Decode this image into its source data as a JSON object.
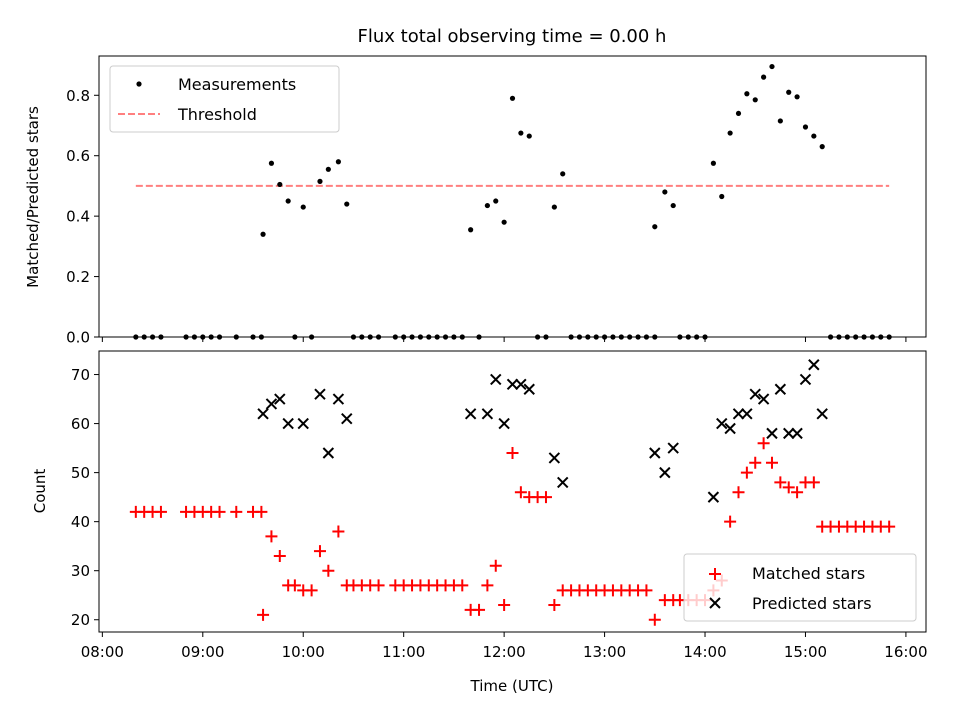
{
  "title": "Flux total observing time = 0.00 h",
  "colors": {
    "measurement": "#000000",
    "threshold": "#ff7f7f",
    "matched": "#ff0000",
    "predicted": "#000000"
  },
  "chart_data": [
    {
      "type": "scatter",
      "title": "Flux total observing time = 0.00 h",
      "xlabel": "",
      "ylabel": "Matched/Predicted stars",
      "xlim": [
        "07:58",
        "16:12"
      ],
      "ylim": [
        0,
        0.93
      ],
      "yticks": [
        0.0,
        0.2,
        0.4,
        0.6,
        0.8
      ],
      "ytick_labels": [
        "0.0",
        "0.2",
        "0.4",
        "0.6",
        "0.8"
      ],
      "legend": {
        "position": "top-left",
        "entries": [
          "Measurements",
          "Threshold"
        ]
      },
      "threshold": {
        "name": "Threshold",
        "y": 0.5,
        "x_range": [
          "08:20",
          "15:50"
        ]
      },
      "series": [
        {
          "name": "Measurements",
          "marker": "dot",
          "points": [
            [
              "08:20",
              0
            ],
            [
              "08:25",
              0
            ],
            [
              "08:30",
              0
            ],
            [
              "08:35",
              0
            ],
            [
              "08:50",
              0
            ],
            [
              "08:55",
              0
            ],
            [
              "09:00",
              0
            ],
            [
              "09:05",
              0
            ],
            [
              "09:10",
              0
            ],
            [
              "09:20",
              0
            ],
            [
              "09:30",
              0
            ],
            [
              "09:35",
              0
            ],
            [
              "09:36",
              0.34
            ],
            [
              "09:41",
              0.575
            ],
            [
              "09:46",
              0.505
            ],
            [
              "09:51",
              0.45
            ],
            [
              "09:55",
              0
            ],
            [
              "10:00",
              0.43
            ],
            [
              "10:05",
              0
            ],
            [
              "10:10",
              0.515
            ],
            [
              "10:15",
              0.555
            ],
            [
              "10:21",
              0.58
            ],
            [
              "10:26",
              0.44
            ],
            [
              "10:30",
              0
            ],
            [
              "10:35",
              0
            ],
            [
              "10:40",
              0
            ],
            [
              "10:45",
              0
            ],
            [
              "10:55",
              0
            ],
            [
              "11:00",
              0
            ],
            [
              "11:05",
              0
            ],
            [
              "11:10",
              0
            ],
            [
              "11:15",
              0
            ],
            [
              "11:20",
              0
            ],
            [
              "11:25",
              0
            ],
            [
              "11:30",
              0
            ],
            [
              "11:35",
              0
            ],
            [
              "11:40",
              0.355
            ],
            [
              "11:45",
              0
            ],
            [
              "11:50",
              0.435
            ],
            [
              "11:55",
              0.45
            ],
            [
              "12:00",
              0.38
            ],
            [
              "12:05",
              0.79
            ],
            [
              "12:10",
              0.675
            ],
            [
              "12:15",
              0.665
            ],
            [
              "12:20",
              0
            ],
            [
              "12:25",
              0
            ],
            [
              "12:30",
              0.43
            ],
            [
              "12:35",
              0.54
            ],
            [
              "12:40",
              0
            ],
            [
              "12:45",
              0
            ],
            [
              "12:50",
              0
            ],
            [
              "12:55",
              0
            ],
            [
              "13:00",
              0
            ],
            [
              "13:05",
              0
            ],
            [
              "13:10",
              0
            ],
            [
              "13:15",
              0
            ],
            [
              "13:20",
              0
            ],
            [
              "13:25",
              0
            ],
            [
              "13:30",
              0
            ],
            [
              "13:30",
              0.365
            ],
            [
              "13:36",
              0.48
            ],
            [
              "13:41",
              0.435
            ],
            [
              "13:45",
              0
            ],
            [
              "13:50",
              0
            ],
            [
              "13:55",
              0
            ],
            [
              "14:00",
              0
            ],
            [
              "14:05",
              0.575
            ],
            [
              "14:10",
              0.465
            ],
            [
              "14:15",
              0.675
            ],
            [
              "14:20",
              0.74
            ],
            [
              "14:25",
              0.805
            ],
            [
              "14:30",
              0.785
            ],
            [
              "14:35",
              0.86
            ],
            [
              "14:40",
              0.895
            ],
            [
              "14:45",
              0.715
            ],
            [
              "14:50",
              0.81
            ],
            [
              "14:55",
              0.795
            ],
            [
              "15:00",
              0.695
            ],
            [
              "15:05",
              0.665
            ],
            [
              "15:10",
              0.63
            ],
            [
              "15:15",
              0
            ],
            [
              "15:20",
              0
            ],
            [
              "15:25",
              0
            ],
            [
              "15:30",
              0
            ],
            [
              "15:35",
              0
            ],
            [
              "15:40",
              0
            ],
            [
              "15:45",
              0
            ],
            [
              "15:50",
              0
            ]
          ]
        }
      ]
    },
    {
      "type": "scatter",
      "title": "",
      "xlabel": "Time (UTC)",
      "ylabel": "Count",
      "xlim": [
        "07:58",
        "16:12"
      ],
      "ylim": [
        17.5,
        74.8
      ],
      "yticks": [
        20,
        30,
        40,
        50,
        60,
        70
      ],
      "ytick_labels": [
        "20",
        "30",
        "40",
        "50",
        "60",
        "70"
      ],
      "xticks": [
        "08:00",
        "09:00",
        "10:00",
        "11:00",
        "12:00",
        "13:00",
        "14:00",
        "15:00",
        "16:00"
      ],
      "xtick_labels": [
        "08:00",
        "09:00",
        "10:00",
        "11:00",
        "12:00",
        "13:00",
        "14:00",
        "15:00",
        "16:00"
      ],
      "legend": {
        "position": "bottom-right",
        "entries": [
          "Matched stars",
          "Predicted stars"
        ]
      },
      "series": [
        {
          "name": "Matched stars",
          "marker": "plus",
          "points": [
            [
              "08:20",
              42
            ],
            [
              "08:25",
              42
            ],
            [
              "08:30",
              42
            ],
            [
              "08:35",
              42
            ],
            [
              "08:50",
              42
            ],
            [
              "08:55",
              42
            ],
            [
              "09:00",
              42
            ],
            [
              "09:05",
              42
            ],
            [
              "09:10",
              42
            ],
            [
              "09:20",
              42
            ],
            [
              "09:30",
              42
            ],
            [
              "09:35",
              42
            ],
            [
              "09:36",
              21
            ],
            [
              "09:41",
              37
            ],
            [
              "09:46",
              33
            ],
            [
              "09:51",
              27
            ],
            [
              "09:55",
              27
            ],
            [
              "10:00",
              26
            ],
            [
              "10:05",
              26
            ],
            [
              "10:10",
              34
            ],
            [
              "10:15",
              30
            ],
            [
              "10:21",
              38
            ],
            [
              "10:26",
              27
            ],
            [
              "10:30",
              27
            ],
            [
              "10:35",
              27
            ],
            [
              "10:40",
              27
            ],
            [
              "10:45",
              27
            ],
            [
              "10:55",
              27
            ],
            [
              "11:00",
              27
            ],
            [
              "11:05",
              27
            ],
            [
              "11:10",
              27
            ],
            [
              "11:15",
              27
            ],
            [
              "11:20",
              27
            ],
            [
              "11:25",
              27
            ],
            [
              "11:30",
              27
            ],
            [
              "11:35",
              27
            ],
            [
              "11:40",
              22
            ],
            [
              "11:45",
              22
            ],
            [
              "11:50",
              27
            ],
            [
              "11:55",
              31
            ],
            [
              "12:00",
              23
            ],
            [
              "12:05",
              54
            ],
            [
              "12:10",
              46
            ],
            [
              "12:15",
              45
            ],
            [
              "12:20",
              45
            ],
            [
              "12:25",
              45
            ],
            [
              "12:30",
              23
            ],
            [
              "12:35",
              26
            ],
            [
              "12:40",
              26
            ],
            [
              "12:45",
              26
            ],
            [
              "12:50",
              26
            ],
            [
              "12:55",
              26
            ],
            [
              "13:00",
              26
            ],
            [
              "13:05",
              26
            ],
            [
              "13:10",
              26
            ],
            [
              "13:15",
              26
            ],
            [
              "13:20",
              26
            ],
            [
              "13:25",
              26
            ],
            [
              "13:30",
              20
            ],
            [
              "13:36",
              24
            ],
            [
              "13:41",
              24
            ],
            [
              "13:45",
              24
            ],
            [
              "13:50",
              24
            ],
            [
              "13:55",
              24
            ],
            [
              "14:00",
              24
            ],
            [
              "14:05",
              26
            ],
            [
              "14:10",
              28
            ],
            [
              "14:15",
              40
            ],
            [
              "14:20",
              46
            ],
            [
              "14:25",
              50
            ],
            [
              "14:30",
              52
            ],
            [
              "14:35",
              56
            ],
            [
              "14:40",
              52
            ],
            [
              "14:45",
              48
            ],
            [
              "14:50",
              47
            ],
            [
              "14:55",
              46
            ],
            [
              "15:00",
              48
            ],
            [
              "15:05",
              48
            ],
            [
              "15:10",
              39
            ],
            [
              "15:15",
              39
            ],
            [
              "15:20",
              39
            ],
            [
              "15:25",
              39
            ],
            [
              "15:30",
              39
            ],
            [
              "15:35",
              39
            ],
            [
              "15:40",
              39
            ],
            [
              "15:45",
              39
            ],
            [
              "15:50",
              39
            ]
          ]
        },
        {
          "name": "Predicted stars",
          "marker": "x",
          "points": [
            [
              "09:36",
              62
            ],
            [
              "09:41",
              64
            ],
            [
              "09:46",
              65
            ],
            [
              "09:51",
              60
            ],
            [
              "10:00",
              60
            ],
            [
              "10:10",
              66
            ],
            [
              "10:15",
              54
            ],
            [
              "10:21",
              65
            ],
            [
              "10:26",
              61
            ],
            [
              "11:40",
              62
            ],
            [
              "11:50",
              62
            ],
            [
              "11:55",
              69
            ],
            [
              "12:00",
              60
            ],
            [
              "12:05",
              68
            ],
            [
              "12:10",
              68
            ],
            [
              "12:15",
              67
            ],
            [
              "12:30",
              53
            ],
            [
              "12:35",
              48
            ],
            [
              "13:30",
              54
            ],
            [
              "13:36",
              50
            ],
            [
              "13:41",
              55
            ],
            [
              "14:05",
              45
            ],
            [
              "14:10",
              60
            ],
            [
              "14:15",
              59
            ],
            [
              "14:20",
              62
            ],
            [
              "14:25",
              62
            ],
            [
              "14:30",
              66
            ],
            [
              "14:35",
              65
            ],
            [
              "14:40",
              58
            ],
            [
              "14:45",
              67
            ],
            [
              "14:50",
              58
            ],
            [
              "14:55",
              58
            ],
            [
              "15:00",
              69
            ],
            [
              "15:05",
              72
            ],
            [
              "15:10",
              62
            ]
          ]
        }
      ]
    }
  ]
}
